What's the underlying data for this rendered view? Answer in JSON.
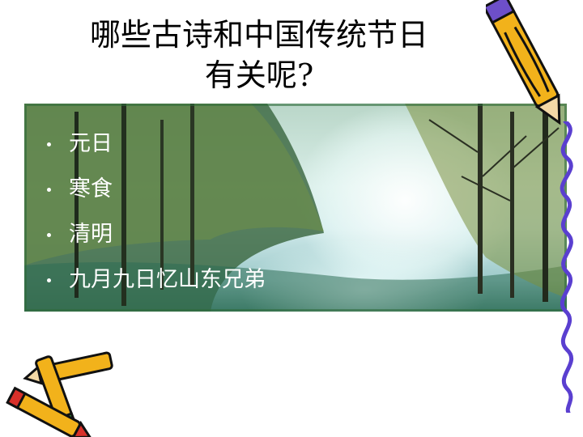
{
  "slide": {
    "title_line1": "哪些古诗和中国传统节日",
    "title_line2": "有关呢?",
    "bullets": [
      {
        "label": "元日"
      },
      {
        "label": "寒食"
      },
      {
        "label": "清明"
      },
      {
        "label": "九月九日忆山东兄弟"
      }
    ]
  },
  "decorations": {
    "top_right": "pencil-icon",
    "bottom_left": "crayons-icon",
    "right_edge": "purple-squiggle-border"
  },
  "colors": {
    "title_text": "#000000",
    "bullet_text": "#ffffff",
    "squiggle": "#5a3fd0",
    "pencil_body": "#f2b21b"
  }
}
